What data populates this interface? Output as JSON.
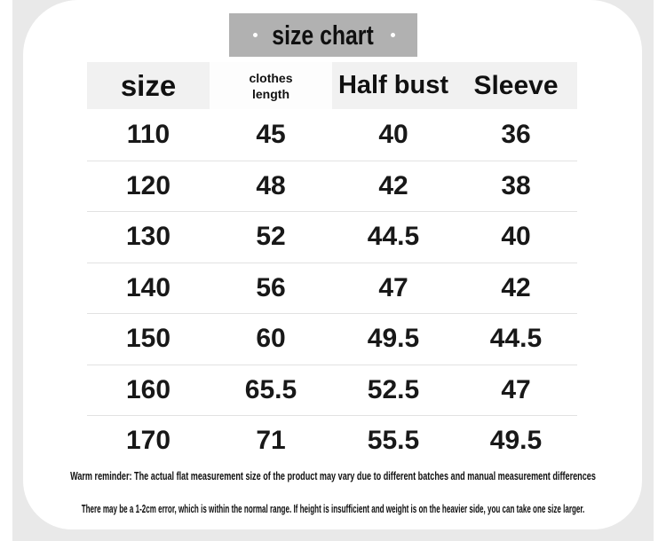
{
  "colors": {
    "page_bg": "#ffffff",
    "band_bg": "#e9e9e9",
    "card_bg": "#ffffff",
    "title_box_bg": "#b1b1b1",
    "header_bg": "#f1f1f1",
    "header_alt_bg": "#fdfdfd",
    "divider": "#e2e2e2",
    "text": "#111111"
  },
  "title": {
    "text": "size chart"
  },
  "header": {
    "col1": "size",
    "col2_line1": "clothes",
    "col2_line2": "length",
    "col3": "Half bust",
    "col4": "Sleeve"
  },
  "chart_data": {
    "type": "table",
    "title": "size chart",
    "columns": [
      "size",
      "clothes length",
      "Half bust",
      "Sleeve"
    ],
    "rows": [
      [
        "110",
        "45",
        "40",
        "36"
      ],
      [
        "120",
        "48",
        "42",
        "38"
      ],
      [
        "130",
        "52",
        "44.5",
        "40"
      ],
      [
        "140",
        "56",
        "47",
        "42"
      ],
      [
        "150",
        "60",
        "49.5",
        "44.5"
      ],
      [
        "160",
        "65.5",
        "52.5",
        "47"
      ],
      [
        "170",
        "71",
        "55.5",
        "49.5"
      ]
    ]
  },
  "footer": {
    "line1": "Warm reminder: The actual flat measurement size of the product may vary due to different batches and manual measurement differences",
    "line2": "There may be a 1-2cm error, which is within the normal range. If height is insufficient and weight is on the heavier side, you can take one size larger."
  }
}
